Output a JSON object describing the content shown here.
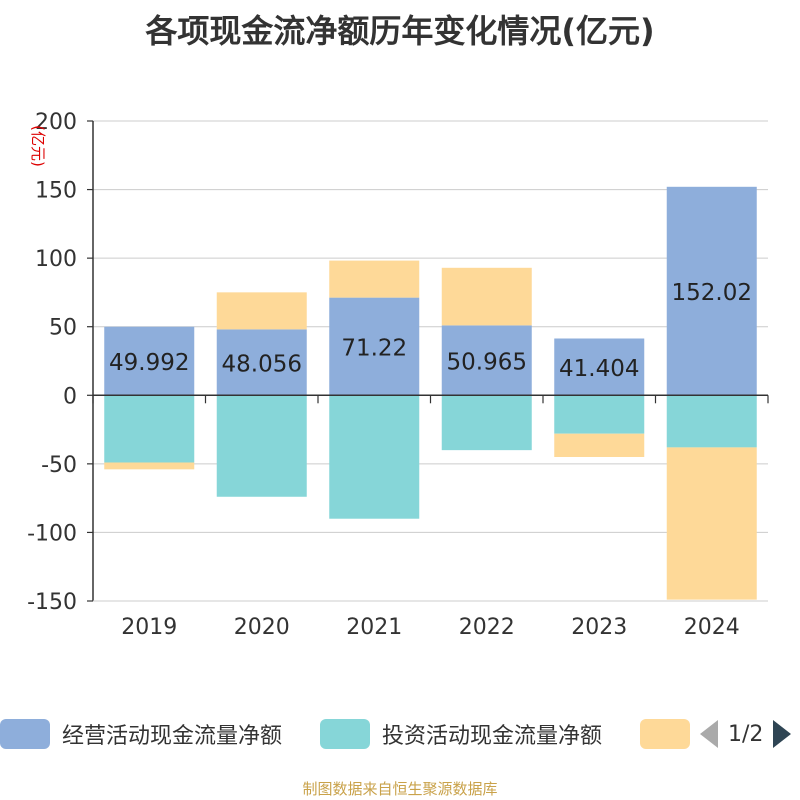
{
  "chart_data": {
    "type": "bar",
    "stacked": true,
    "title": "各项现金流净额历年变化情况(亿元)",
    "ylabel": "(亿元)",
    "categories": [
      "2019",
      "2020",
      "2021",
      "2022",
      "2023",
      "2024"
    ],
    "ylim": [
      -150,
      200
    ],
    "yticks": [
      200,
      150,
      100,
      50,
      0,
      -50,
      -100,
      -150
    ],
    "grid": true,
    "series": [
      {
        "name": "经营活动现金流量净额",
        "color": "#8eaedb",
        "values": [
          49.992,
          48.056,
          71.22,
          50.965,
          41.404,
          152.02
        ],
        "data_labels": [
          "49.992",
          "48.056",
          "71.22",
          "50.965",
          "41.404",
          "152.02"
        ]
      },
      {
        "name": "投资活动现金流量净额",
        "color": "#86d6d8",
        "values": [
          -49,
          -74,
          -90,
          -40,
          -28,
          -38
        ]
      },
      {
        "name": "",
        "color": "#fed998",
        "values": [
          -5,
          27,
          27,
          42,
          -17,
          -111
        ]
      }
    ],
    "legend_position": "bottom",
    "legend_page": "1/2"
  },
  "source": "制图数据来自恒生聚源数据库"
}
